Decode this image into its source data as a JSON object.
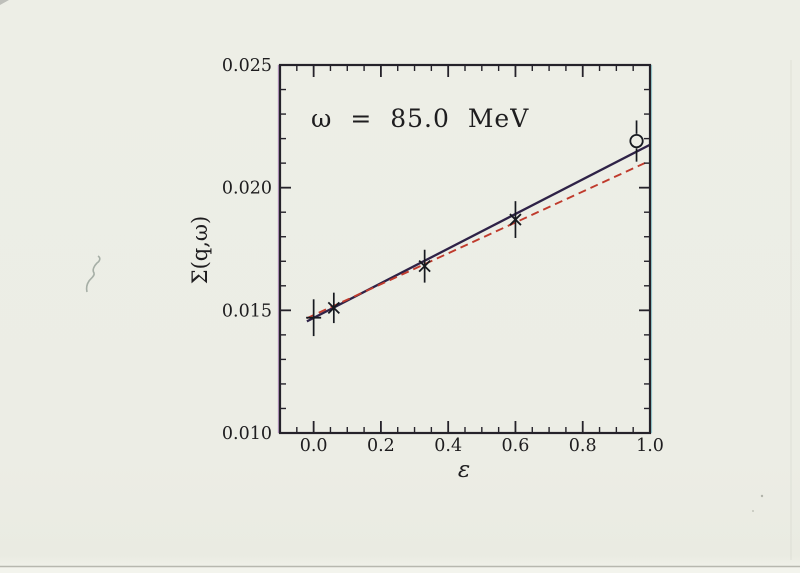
{
  "page": {
    "background_color": "#ecede5",
    "type_note": "scanned physics figure"
  },
  "chart_data": {
    "type": "scatter",
    "annotation": {
      "text": "ω = 85.0 MeV"
    },
    "xlabel": "ε",
    "ylabel": "Σ(q,ω)",
    "xlim": [
      -0.1,
      1.0
    ],
    "ylim": [
      0.01,
      0.025
    ],
    "x_major_ticks": [
      0.0,
      0.2,
      0.4,
      0.6,
      0.8,
      1.0
    ],
    "x_tick_labels": [
      "0.0",
      "0.2",
      "0.4",
      "0.6",
      "0.8",
      "1.0"
    ],
    "x_minor_step": 0.05,
    "y_major_ticks": [
      0.01,
      0.015,
      0.02,
      0.025
    ],
    "y_tick_labels": [
      "0.010",
      "0.015",
      "0.020",
      "0.025"
    ],
    "y_minor_step": 0.001,
    "grid": false,
    "legend": "none",
    "points": [
      {
        "x": 0.0,
        "y": 0.0147,
        "err": 0.00075,
        "marker": "plus"
      },
      {
        "x": 0.06,
        "y": 0.0151,
        "err": 0.00062,
        "marker": "x"
      },
      {
        "x": 0.33,
        "y": 0.0168,
        "err": 0.00067,
        "marker": "x"
      },
      {
        "x": 0.6,
        "y": 0.0187,
        "err": 0.00075,
        "marker": "x"
      },
      {
        "x": 0.96,
        "y": 0.0219,
        "err": 0.00084,
        "marker": "circle-open"
      }
    ],
    "lines": [
      {
        "name": "solid-fit",
        "style": "solid",
        "color": "#2e2247",
        "x1": -0.02,
        "y1": 0.01455,
        "x2": 1.0,
        "y2": 0.02175
      },
      {
        "name": "dashed-fit",
        "style": "dashed",
        "color": "#bf3a2c",
        "x1": -0.02,
        "y1": 0.01468,
        "x2": 1.0,
        "y2": 0.0211
      }
    ],
    "axis_color": "#25222a",
    "marker_color": "#16191f",
    "text_color": "#1e1d1f"
  }
}
